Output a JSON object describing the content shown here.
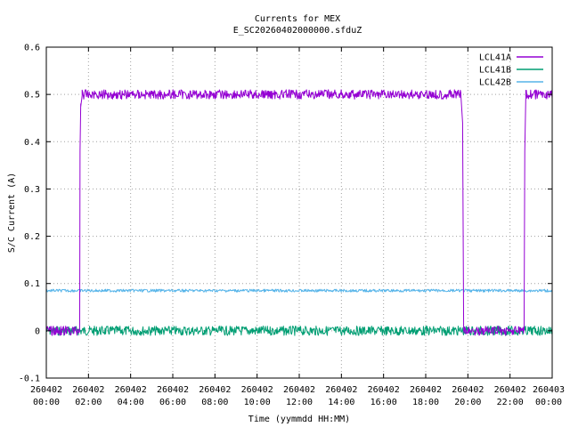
{
  "chart_data": {
    "type": "line",
    "title": "Currents for MEX",
    "subtitle": "E_SC20260402000000.sfduZ",
    "xlabel": "Time (yymmdd HH:MM)",
    "ylabel": "S/C Current (A)",
    "xlim": [
      "2026-04-02T00:00",
      "2026-04-03T00:00"
    ],
    "ylim": [
      -0.1,
      0.6
    ],
    "grid": true,
    "legend_position": "top-right",
    "y_ticks": [
      "-0.1",
      "0",
      "0.1",
      "0.2",
      "0.3",
      "0.4",
      "0.5",
      "0.6"
    ],
    "x_ticks": [
      {
        "date": "260402",
        "time": "00:00"
      },
      {
        "date": "260402",
        "time": "02:00"
      },
      {
        "date": "260402",
        "time": "04:00"
      },
      {
        "date": "260402",
        "time": "06:00"
      },
      {
        "date": "260402",
        "time": "08:00"
      },
      {
        "date": "260402",
        "time": "10:00"
      },
      {
        "date": "260402",
        "time": "12:00"
      },
      {
        "date": "260402",
        "time": "14:00"
      },
      {
        "date": "260402",
        "time": "16:00"
      },
      {
        "date": "260402",
        "time": "18:00"
      },
      {
        "date": "260402",
        "time": "20:00"
      },
      {
        "date": "260402",
        "time": "22:00"
      },
      {
        "date": "260403",
        "time": "00:00"
      }
    ],
    "series": [
      {
        "name": "LCL41A",
        "color": "#9400d3",
        "points": [
          {
            "t": "2026-04-02T00:00",
            "y": 0.0
          },
          {
            "t": "2026-04-02T01:35",
            "y": 0.0
          },
          {
            "t": "2026-04-02T01:36",
            "y": 0.38
          },
          {
            "t": "2026-04-02T01:38",
            "y": 0.48
          },
          {
            "t": "2026-04-02T01:42",
            "y": 0.5
          },
          {
            "t": "2026-04-02T19:40",
            "y": 0.5
          },
          {
            "t": "2026-04-02T19:45",
            "y": 0.44
          },
          {
            "t": "2026-04-02T19:48",
            "y": 0.0
          },
          {
            "t": "2026-04-02T22:40",
            "y": 0.0
          },
          {
            "t": "2026-04-02T22:42",
            "y": 0.38
          },
          {
            "t": "2026-04-02T22:45",
            "y": 0.5
          },
          {
            "t": "2026-04-03T00:00",
            "y": 0.5
          }
        ],
        "noise": 0.01
      },
      {
        "name": "LCL41B",
        "color": "#009e73",
        "points": [
          {
            "t": "2026-04-02T00:00",
            "y": 0.0
          },
          {
            "t": "2026-04-03T00:00",
            "y": 0.0
          }
        ],
        "noise": 0.01
      },
      {
        "name": "LCL42B",
        "color": "#56b4e9",
        "points": [
          {
            "t": "2026-04-02T00:00",
            "y": 0.085
          },
          {
            "t": "2026-04-03T00:00",
            "y": 0.085
          }
        ],
        "noise": 0.003
      }
    ]
  }
}
